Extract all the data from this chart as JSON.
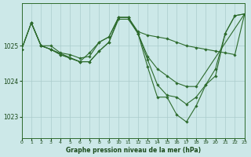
{
  "title": "Graphe pression niveau de la mer (hPa)",
  "background_color": "#cce8e8",
  "grid_color": "#aacccc",
  "line_color": "#2d6b2d",
  "xlim": [
    0,
    23
  ],
  "ylim": [
    1022.4,
    1026.2
  ],
  "yticks": [
    1023,
    1024,
    1025
  ],
  "xticks": [
    0,
    1,
    2,
    3,
    4,
    5,
    6,
    7,
    8,
    9,
    10,
    11,
    12,
    13,
    14,
    15,
    16,
    17,
    18,
    19,
    20,
    21,
    22,
    23
  ],
  "series": [
    {
      "x": [
        0,
        1,
        2,
        3,
        4,
        5,
        6,
        7,
        8,
        9,
        10,
        11,
        12,
        13,
        14,
        15,
        16,
        17,
        18,
        19,
        20,
        21,
        22,
        23
      ],
      "y": [
        1024.9,
        1025.65,
        1025.0,
        1025.0,
        1024.8,
        1024.75,
        1024.65,
        1024.7,
        1025.1,
        1025.25,
        1025.8,
        1025.8,
        1025.4,
        1025.3,
        1025.25,
        1025.2,
        1025.1,
        1025.0,
        1024.95,
        1024.9,
        1024.85,
        1024.8,
        1024.75,
        1025.9
      ]
    },
    {
      "x": [
        0,
        1,
        2,
        3,
        4,
        5,
        6,
        7,
        8,
        9,
        10,
        11,
        12,
        13,
        14,
        15,
        16,
        17,
        18,
        19,
        20,
        21,
        22,
        23
      ],
      "y": [
        1024.9,
        1025.65,
        1025.0,
        1024.9,
        1024.75,
        1024.65,
        1024.55,
        1024.55,
        1024.85,
        1025.1,
        1025.8,
        1025.8,
        1025.35,
        1024.6,
        1023.9,
        1023.6,
        1023.55,
        1023.35,
        1023.55,
        1023.9,
        1024.35,
        1025.35,
        1025.85,
        1025.9
      ]
    },
    {
      "x": [
        0,
        1,
        2,
        3,
        4,
        5,
        6,
        7,
        8,
        9,
        10,
        11,
        12,
        13,
        14,
        15,
        16,
        17,
        18,
        23
      ],
      "y": [
        1024.9,
        1025.65,
        1025.0,
        1024.9,
        1024.75,
        1024.65,
        1024.55,
        1024.55,
        1024.85,
        1025.1,
        1025.75,
        1025.75,
        1025.35,
        1024.7,
        1024.35,
        1024.15,
        1023.95,
        1023.85,
        1023.85,
        1025.9
      ]
    },
    {
      "x": [
        1,
        2,
        3,
        6,
        7,
        8,
        9,
        10,
        11,
        12,
        13,
        14,
        15,
        16,
        17,
        18,
        19,
        20,
        21,
        22,
        23
      ],
      "y": [
        1025.65,
        1025.0,
        1024.9,
        1024.55,
        1024.8,
        1025.1,
        1025.25,
        1025.8,
        1025.8,
        1025.35,
        1024.4,
        1023.55,
        1023.55,
        1023.05,
        1022.85,
        1023.3,
        1023.9,
        1024.15,
        1025.35,
        1025.85,
        1025.9
      ]
    }
  ]
}
